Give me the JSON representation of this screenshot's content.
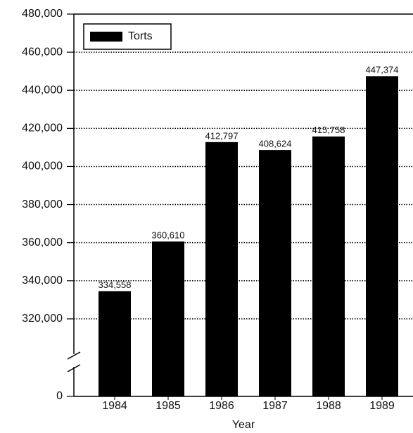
{
  "chart_data": {
    "type": "bar",
    "x_label": "Year",
    "categories": [
      "1984",
      "1985",
      "1986",
      "1987",
      "1988",
      "1989"
    ],
    "series": [
      {
        "name": "Torts",
        "color": "#000000",
        "values": [
          334558,
          360610,
          412797,
          408624,
          415758,
          447374
        ],
        "value_labels": [
          "334,558",
          "360,610",
          "412,797",
          "408,624",
          "415,758",
          "447,374"
        ]
      }
    ],
    "ylim": [
      0,
      480000
    ],
    "yticks": [
      0,
      {
        "value": 320000,
        "label": "320,000"
      },
      {
        "value": 340000,
        "label": "340,000"
      },
      {
        "value": 360000,
        "label": "360,000"
      },
      {
        "value": 380000,
        "label": "380,000"
      },
      {
        "value": 400000,
        "label": "400,000"
      },
      {
        "value": 420000,
        "label": "420,000"
      },
      {
        "value": 440000,
        "label": "440,000"
      },
      {
        "value": 460000,
        "label": "460,000"
      },
      {
        "value": 480000,
        "label": "480,000"
      }
    ],
    "axis_break": true,
    "grid": true,
    "legend": "upper left"
  }
}
